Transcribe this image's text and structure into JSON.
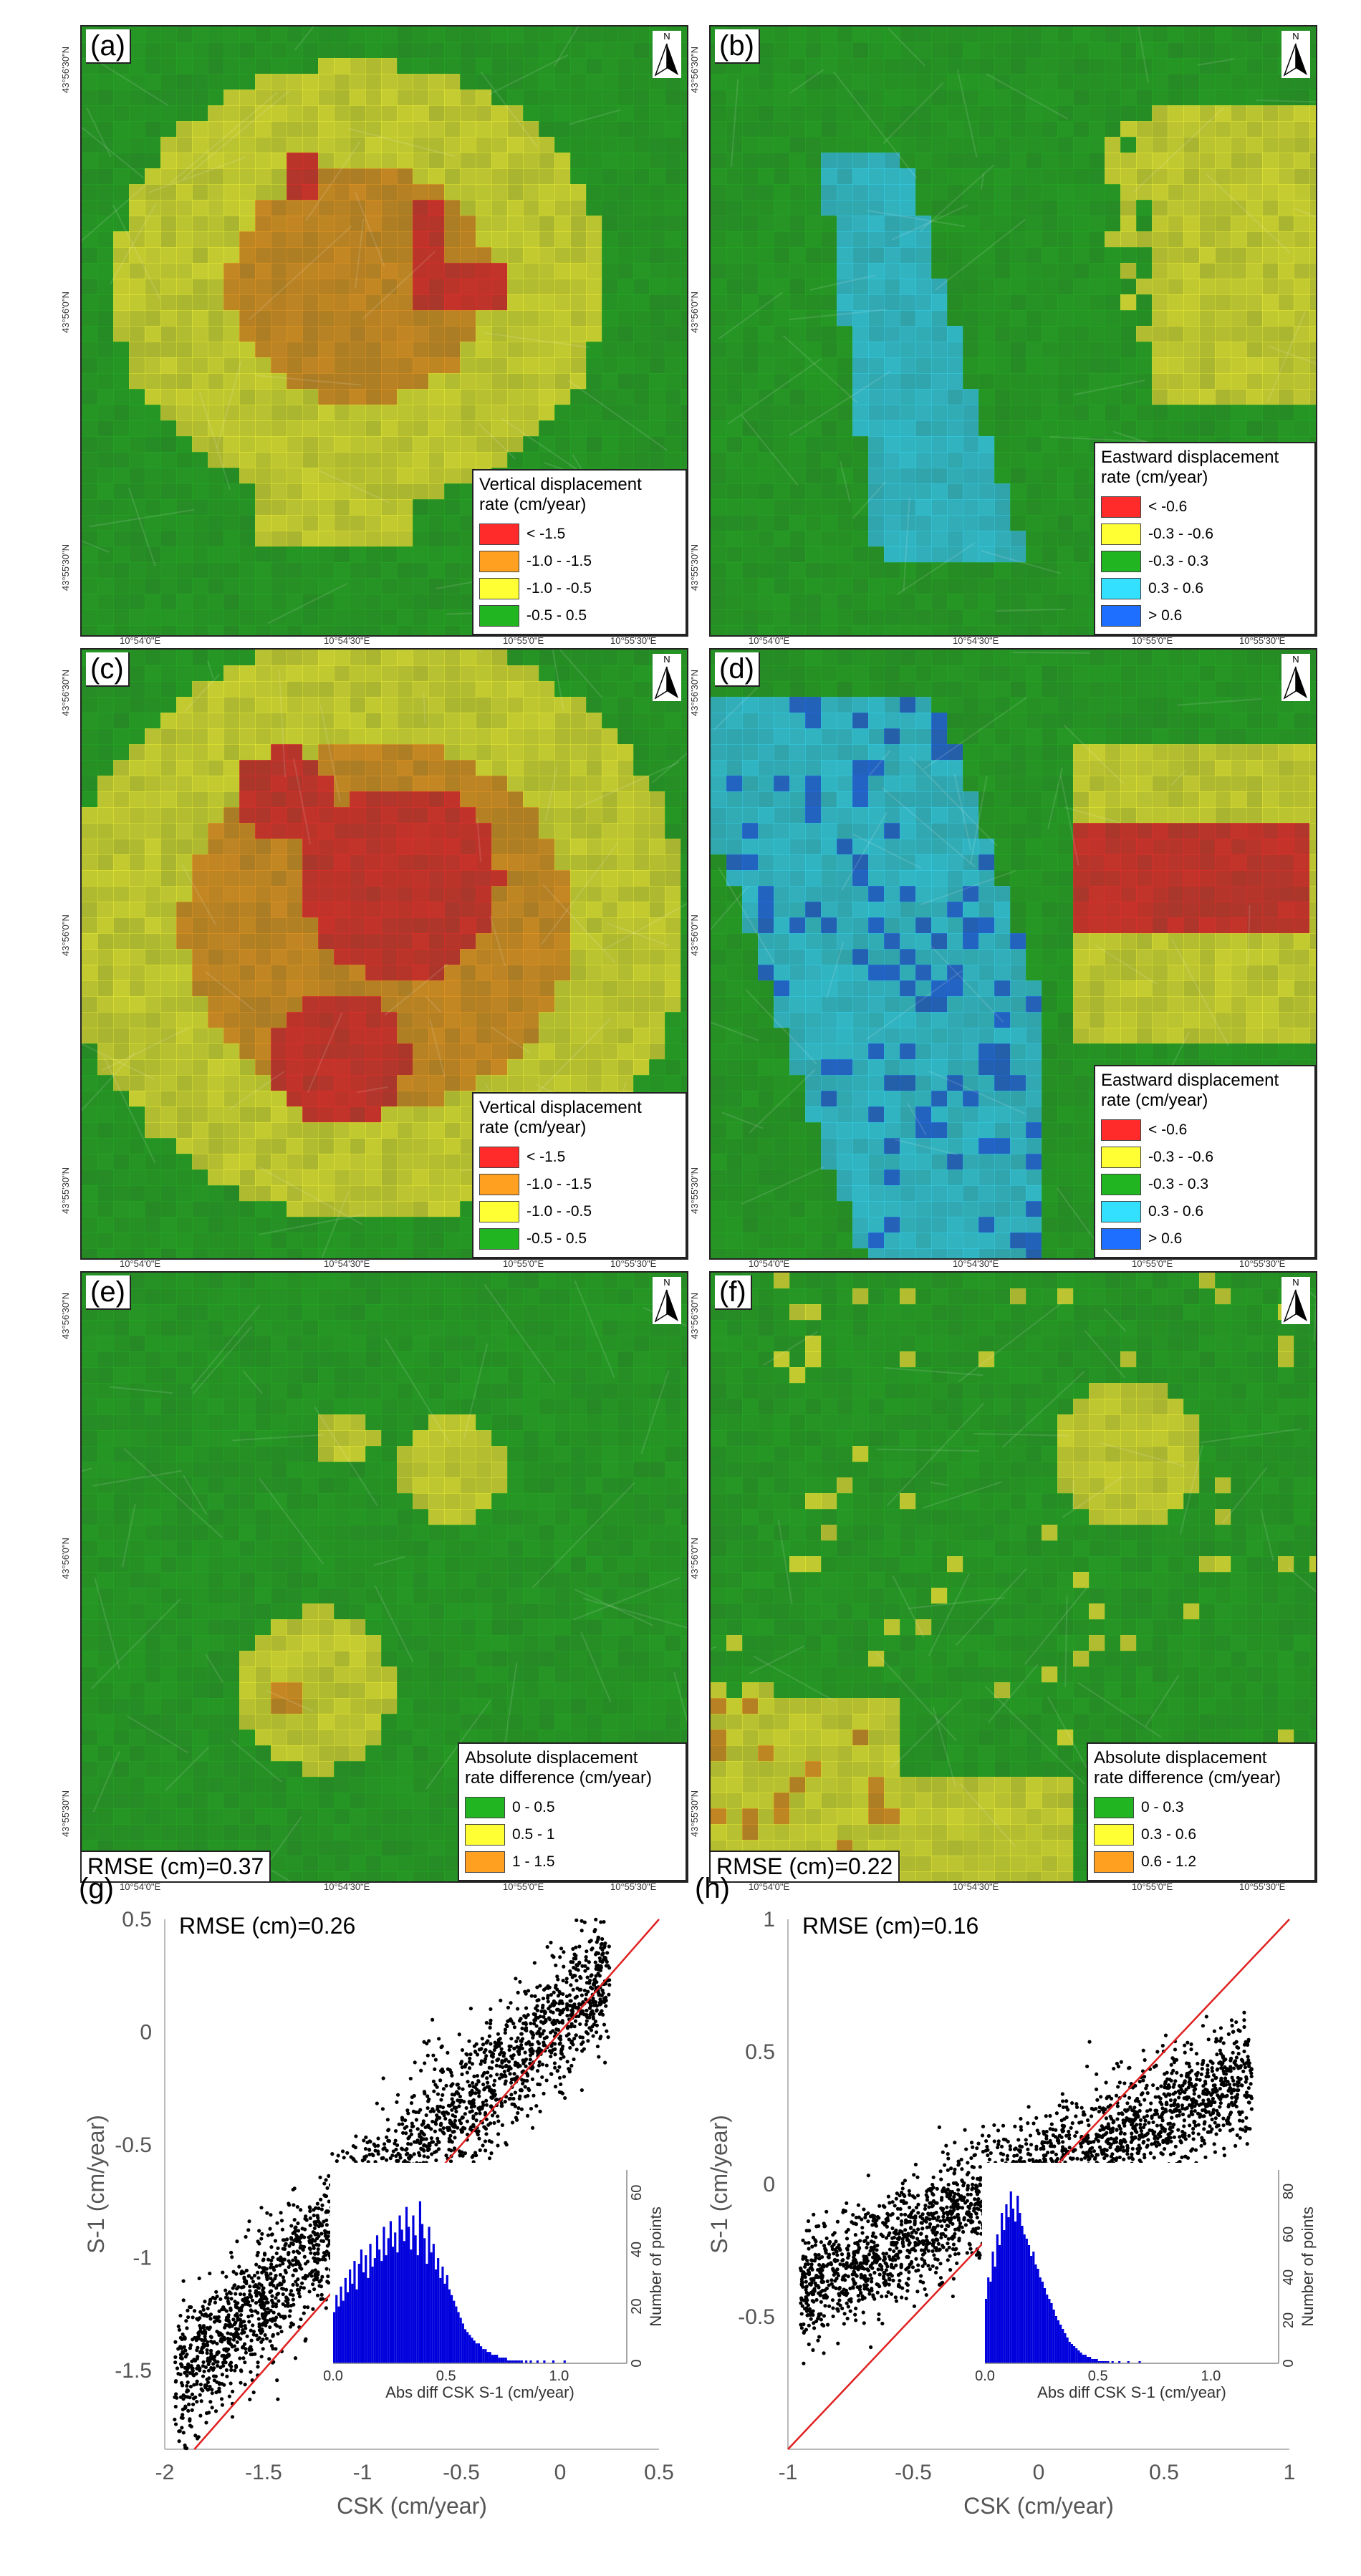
{
  "north_label": "N",
  "panels": [
    {
      "id": "a",
      "label": "(a)",
      "legend_title": [
        "Vertical displacement",
        "rate (cm/year)"
      ],
      "legend_items": [
        {
          "label": "< -1.5",
          "color": "#ff2a2a"
        },
        {
          "label": "-1.0 - -1.5",
          "color": "#ffa020"
        },
        {
          "label": "-1.0 - -0.5",
          "color": "#ffff33"
        },
        {
          "label": "-0.5 - 0.5",
          "color": "#22b522"
        }
      ],
      "lat_ticks": [
        "43°56'30\"N",
        "43°56'0\"N",
        "43°55'30\"N"
      ],
      "lon_ticks": [
        "10°54'0\"E",
        "10°54'30\"E",
        "10°55'0\"E",
        "10°55'30\"E"
      ]
    },
    {
      "id": "b",
      "label": "(b)",
      "legend_title": [
        "Eastward displacement",
        "rate (cm/year)"
      ],
      "legend_items": [
        {
          "label": "< -0.6",
          "color": "#ff2a2a"
        },
        {
          "label": "-0.3 - -0.6",
          "color": "#ffff33"
        },
        {
          "label": "-0.3 - 0.3",
          "color": "#22b522"
        },
        {
          "label": "0.3 - 0.6",
          "color": "#33e0ff"
        },
        {
          "label": "> 0.6",
          "color": "#1e6eff"
        }
      ],
      "lat_ticks": [
        "43°56'30\"N",
        "43°56'0\"N",
        "43°55'30\"N"
      ],
      "lon_ticks": [
        "10°54'0\"E",
        "10°54'30\"E",
        "10°55'0\"E",
        "10°55'30\"E"
      ]
    },
    {
      "id": "c",
      "label": "(c)",
      "legend_title": [
        "Vertical displacement",
        "rate (cm/year)"
      ],
      "legend_items": [
        {
          "label": "< -1.5",
          "color": "#ff2a2a"
        },
        {
          "label": "-1.0 - -1.5",
          "color": "#ffa020"
        },
        {
          "label": "-1.0 - -0.5",
          "color": "#ffff33"
        },
        {
          "label": "-0.5 - 0.5",
          "color": "#22b522"
        }
      ],
      "lat_ticks": [
        "43°56'30\"N",
        "43°56'0\"N",
        "43°55'30\"N"
      ],
      "lon_ticks": [
        "10°54'0\"E",
        "10°54'30\"E",
        "10°55'0\"E",
        "10°55'30\"E"
      ]
    },
    {
      "id": "d",
      "label": "(d)",
      "legend_title": [
        "Eastward displacement",
        "rate (cm/year)"
      ],
      "legend_items": [
        {
          "label": "< -0.6",
          "color": "#ff2a2a"
        },
        {
          "label": "-0.3 - -0.6",
          "color": "#ffff33"
        },
        {
          "label": "-0.3 - 0.3",
          "color": "#22b522"
        },
        {
          "label": "0.3 - 0.6",
          "color": "#33e0ff"
        },
        {
          "label": "> 0.6",
          "color": "#1e6eff"
        }
      ],
      "lat_ticks": [
        "43°56'30\"N",
        "43°56'0\"N",
        "43°55'30\"N"
      ],
      "lon_ticks": [
        "10°54'0\"E",
        "10°54'30\"E",
        "10°55'0\"E",
        "10°55'30\"E"
      ]
    },
    {
      "id": "e",
      "label": "(e)",
      "legend_title": [
        "Absolute displacement",
        "rate difference (cm/year)"
      ],
      "legend_items": [
        {
          "label": "0 - 0.5",
          "color": "#22b522"
        },
        {
          "label": "0.5 - 1",
          "color": "#ffff33"
        },
        {
          "label": "1 - 1.5",
          "color": "#ffa020"
        }
      ],
      "rmse": "RMSE (cm)=0.37",
      "lat_ticks": [
        "43°56'30\"N",
        "43°56'0\"N",
        "43°55'30\"N"
      ],
      "lon_ticks": [
        "10°54'0\"E",
        "10°54'30\"E",
        "10°55'0\"E",
        "10°55'30\"E"
      ]
    },
    {
      "id": "f",
      "label": "(f)",
      "legend_title": [
        "Absolute displacement",
        "rate difference (cm/year)"
      ],
      "legend_items": [
        {
          "label": "0 - 0.3",
          "color": "#22b522"
        },
        {
          "label": "0.3 - 0.6",
          "color": "#ffff33"
        },
        {
          "label": "0.6 - 1.2",
          "color": "#ffa020"
        }
      ],
      "rmse": "RMSE (cm)=0.22",
      "lat_ticks": [
        "43°56'30\"N",
        "43°56'0\"N",
        "43°55'30\"N"
      ],
      "lon_ticks": [
        "10°54'0\"E",
        "10°54'30\"E",
        "10°55'0\"E",
        "10°55'30\"E"
      ]
    }
  ],
  "chart_data": [
    {
      "id": "g",
      "type": "scatter",
      "label": "(g)",
      "rmse": "RMSE (cm)=0.26",
      "xlabel": "CSK (cm/year)",
      "ylabel": "S-1 (cm/year)",
      "xlim": [
        -2,
        0.5
      ],
      "ylim": [
        -1.85,
        0.5
      ],
      "xticks": [
        -2,
        -1.5,
        -1,
        -0.5,
        0,
        0.5
      ],
      "yticks": [
        -1.5,
        -1,
        -0.5,
        0,
        0.5
      ],
      "xtick_labels": [
        "-2",
        "-1.5",
        "-1",
        "-0.5",
        "0",
        "0.5"
      ],
      "ytick_labels": [
        "-1.5",
        "-1",
        "-0.5",
        "0",
        "0.5"
      ],
      "reference_line": "1:1",
      "point_color": "#000000",
      "line_color": "#e02020",
      "trend": {
        "slope": 0.82,
        "intercept": 0.05,
        "spread": 0.15,
        "xrange": [
          -1.95,
          0.25
        ]
      },
      "inset": {
        "type": "histogram",
        "xlabel": "Abs diff CSK S-1 (cm/year)",
        "ylabel": "Number of points",
        "xticks": [
          0,
          0.5,
          1.0
        ],
        "xtick_labels": [
          "0.0",
          "0.5",
          "1.0"
        ],
        "yticks": [
          0,
          20,
          40,
          60
        ],
        "ytick_labels": [
          "0",
          "20",
          "40",
          "60"
        ],
        "ylim": [
          0,
          68
        ],
        "bin_width": 0.01,
        "xlim": [
          0,
          1.3
        ],
        "bar_color": "#0000dd",
        "counts": [
          18,
          24,
          20,
          27,
          22,
          30,
          25,
          33,
          28,
          36,
          26,
          35,
          40,
          32,
          38,
          30,
          42,
          34,
          37,
          45,
          40,
          36,
          48,
          38,
          44,
          50,
          41,
          46,
          39,
          52,
          47,
          43,
          55,
          48,
          40,
          52,
          45,
          38,
          57,
          49,
          44,
          35,
          48,
          39,
          42,
          33,
          37,
          30,
          34,
          28,
          31,
          26,
          24,
          22,
          20,
          18,
          16,
          14,
          12,
          11,
          10,
          9,
          8,
          7,
          7,
          6,
          5,
          5,
          4,
          4,
          3,
          3,
          3,
          2,
          2,
          2,
          2,
          1,
          1,
          1,
          1,
          1,
          1,
          1,
          0,
          1,
          0,
          1,
          0,
          0,
          1,
          0,
          0,
          1,
          0,
          0,
          0,
          1,
          0,
          0,
          0,
          0,
          1
        ]
      },
      "series": [
        {
          "name": "",
          "n": 2600
        }
      ]
    },
    {
      "id": "h",
      "type": "scatter",
      "label": "(h)",
      "rmse": "RMSE (cm)=0.16",
      "xlabel": "CSK (cm/year)",
      "ylabel": "S-1 (cm/year)",
      "xlim": [
        -1,
        1
      ],
      "ylim": [
        -1,
        1
      ],
      "xticks": [
        -1,
        -0.5,
        0,
        0.5,
        1
      ],
      "yticks": [
        -0.5,
        0,
        0.5,
        1
      ],
      "xtick_labels": [
        "-1",
        "-0.5",
        "0",
        "0.5",
        "1"
      ],
      "ytick_labels": [
        "-0.5",
        "0",
        "0.5",
        "1"
      ],
      "reference_line": "1:1",
      "point_color": "#000000",
      "line_color": "#e02020",
      "trend": {
        "slope": 0.45,
        "intercept": 0.03,
        "spread": 0.11,
        "xrange": [
          -0.95,
          0.85
        ]
      },
      "inset": {
        "type": "histogram",
        "xlabel": "Abs diff CSK S-1 (cm/year)",
        "ylabel": "Number of points",
        "xticks": [
          0,
          0.5,
          1.0
        ],
        "xtick_labels": [
          "0.0",
          "0.5",
          "1.0"
        ],
        "yticks": [
          0,
          20,
          40,
          60,
          80
        ],
        "ytick_labels": [
          "0",
          "20",
          "40",
          "60",
          "80"
        ],
        "ylim": [
          0,
          90
        ],
        "bin_width": 0.01,
        "xlim": [
          0,
          1.3
        ],
        "bar_color": "#0000dd",
        "counts": [
          30,
          40,
          38,
          52,
          45,
          60,
          55,
          70,
          62,
          74,
          68,
          80,
          72,
          66,
          78,
          70,
          64,
          60,
          58,
          55,
          50,
          52,
          46,
          44,
          40,
          38,
          35,
          32,
          30,
          28,
          25,
          22,
          20,
          18,
          16,
          14,
          12,
          10,
          9,
          8,
          7,
          6,
          5,
          4,
          4,
          3,
          3,
          2,
          2,
          2,
          1,
          1,
          1,
          1,
          1,
          0,
          1,
          0,
          0,
          1,
          0,
          0,
          0,
          1,
          0,
          0,
          0,
          0,
          1
        ]
      },
      "series": [
        {
          "name": "",
          "n": 2600
        }
      ]
    }
  ]
}
